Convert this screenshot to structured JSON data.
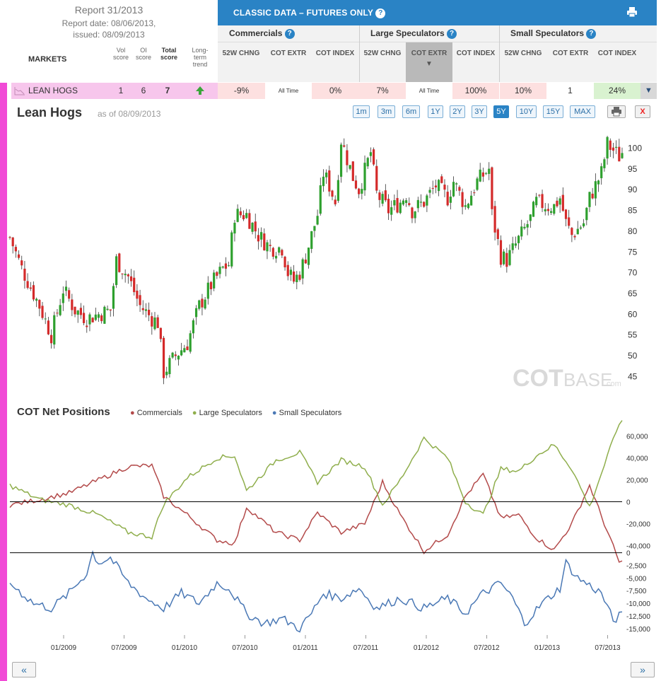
{
  "report": {
    "title": "Report 31/2013",
    "date_line": "Report date: 08/06/2013,",
    "issued_line": "issued: 08/09/2013"
  },
  "columns": {
    "markets": "MARKETS",
    "vol": "Vol score",
    "oi": "OI score",
    "total": "Total score",
    "trend": "Long-term trend"
  },
  "header": {
    "title": "CLASSIC DATA – FUTURES ONLY",
    "groups": [
      "Commercials",
      "Large Speculators",
      "Small Speculators"
    ],
    "sub_52w": "52W CHNG",
    "sub_extr": "COT EXTR",
    "sub_index": "COT INDEX"
  },
  "row": {
    "market": "LEAN HOGS",
    "vol": "1",
    "oi": "6",
    "total": "7",
    "comm_52w": "-9%",
    "comm_extr": "All Time",
    "comm_index": "0%",
    "ls_52w": "7%",
    "ls_extr": "All Time",
    "ls_index": "100%",
    "ss_52w": "10%",
    "ss_extr": "1",
    "ss_index": "24%"
  },
  "chart_header": {
    "title": "Lean Hogs",
    "asof": "as of 08/09/2013",
    "ranges": [
      "1m",
      "3m",
      "6m",
      "1Y",
      "2Y",
      "3Y",
      "5Y",
      "10Y",
      "15Y",
      "MAX"
    ],
    "active_range": "5Y",
    "close_label": "X"
  },
  "watermark": {
    "cot": "COT",
    "base": "BASE",
    "com": ".com"
  },
  "net_positions": {
    "title": "COT Net Positions",
    "legend": [
      {
        "name": "Commercials",
        "color": "#b34a4a"
      },
      {
        "name": "Large Speculators",
        "color": "#8fae4c"
      },
      {
        "name": "Small Speculators",
        "color": "#4a78b5"
      }
    ]
  },
  "nav": {
    "prev": "«",
    "next": "»"
  },
  "colors": {
    "up": "#2ea02e",
    "down": "#d42a2a",
    "accent": "#2a83c5",
    "pink": "#f14ad6"
  },
  "chart_data": [
    {
      "type": "candlestick",
      "title": "Lean Hogs",
      "ylim": [
        42,
        104
      ],
      "yticks": [
        45,
        50,
        55,
        60,
        65,
        70,
        75,
        80,
        85,
        90,
        95,
        100
      ],
      "x_labels": [
        "01/2009",
        "07/2009",
        "01/2010",
        "07/2010",
        "01/2011",
        "07/2011",
        "01/2012",
        "07/2012",
        "01/2013",
        "07/2013"
      ],
      "price_path": [
        [
          0,
          78.5
        ],
        [
          4,
          71
        ],
        [
          10,
          62
        ],
        [
          14,
          55
        ],
        [
          18,
          66
        ],
        [
          22,
          61
        ],
        [
          26,
          59
        ],
        [
          30,
          60
        ],
        [
          34,
          61
        ],
        [
          36,
          73
        ],
        [
          40,
          69
        ],
        [
          44,
          62
        ],
        [
          48,
          59
        ],
        [
          50,
          58
        ],
        [
          52,
          46
        ],
        [
          56,
          50
        ],
        [
          60,
          53
        ],
        [
          64,
          62
        ],
        [
          68,
          67
        ],
        [
          72,
          71
        ],
        [
          74,
          72
        ],
        [
          76,
          84
        ],
        [
          80,
          84
        ],
        [
          84,
          79
        ],
        [
          88,
          76
        ],
        [
          92,
          76
        ],
        [
          94,
          70
        ],
        [
          96,
          68
        ],
        [
          98,
          70
        ],
        [
          100,
          74
        ],
        [
          102,
          79
        ],
        [
          104,
          84
        ],
        [
          106,
          94
        ],
        [
          108,
          91
        ],
        [
          110,
          87
        ],
        [
          112,
          102
        ],
        [
          116,
          93
        ],
        [
          118,
          90
        ],
        [
          122,
          99
        ],
        [
          124,
          89
        ],
        [
          128,
          85
        ],
        [
          132,
          87
        ],
        [
          134,
          89
        ],
        [
          136,
          85
        ],
        [
          140,
          87
        ],
        [
          144,
          91
        ],
        [
          148,
          88
        ],
        [
          150,
          92
        ],
        [
          154,
          86
        ],
        [
          158,
          92
        ],
        [
          162,
          95
        ],
        [
          163,
          84
        ],
        [
          166,
          74
        ],
        [
          168,
          73
        ],
        [
          172,
          78
        ],
        [
          176,
          83
        ],
        [
          178,
          87
        ],
        [
          182,
          86
        ],
        [
          184,
          86
        ],
        [
          186,
          88
        ],
        [
          188,
          82
        ],
        [
          190,
          79
        ],
        [
          194,
          82
        ],
        [
          196,
          88
        ],
        [
          200,
          94
        ],
        [
          202,
          101
        ],
        [
          206,
          98
        ],
        [
          207,
          99
        ]
      ],
      "volatility": 2.2
    },
    {
      "type": "line",
      "title": "COT Net Positions",
      "ylim": [
        -30000,
        72000
      ],
      "yticks": [
        -40000,
        -20000,
        0,
        20000,
        40000,
        60000
      ],
      "series": [
        {
          "name": "Commercials",
          "color": "#b34a4a",
          "path": [
            [
              0,
              -3000
            ],
            [
              10,
              2000
            ],
            [
              20,
              8000
            ],
            [
              30,
              20000
            ],
            [
              40,
              32000
            ],
            [
              48,
              33000
            ],
            [
              52,
              5000
            ],
            [
              60,
              -12000
            ],
            [
              70,
              -35000
            ],
            [
              76,
              -38000
            ],
            [
              80,
              -5000
            ],
            [
              90,
              -28000
            ],
            [
              98,
              -35000
            ],
            [
              104,
              -10000
            ],
            [
              112,
              -28000
            ],
            [
              120,
              -20000
            ],
            [
              126,
              18000
            ],
            [
              132,
              -12000
            ],
            [
              140,
              -45000
            ],
            [
              148,
              -30000
            ],
            [
              154,
              5000
            ],
            [
              160,
              25000
            ],
            [
              166,
              -15000
            ],
            [
              172,
              -12000
            ],
            [
              178,
              -33000
            ],
            [
              184,
              -44000
            ],
            [
              190,
              -20000
            ],
            [
              196,
              15000
            ],
            [
              206,
              -55000
            ]
          ]
        },
        {
          "name": "Large Speculators",
          "color": "#8fae4c",
          "path": [
            [
              0,
              15000
            ],
            [
              10,
              2000
            ],
            [
              20,
              -3000
            ],
            [
              30,
              -12000
            ],
            [
              40,
              -28000
            ],
            [
              48,
              -32000
            ],
            [
              52,
              -2000
            ],
            [
              60,
              22000
            ],
            [
              70,
              40000
            ],
            [
              76,
              42000
            ],
            [
              80,
              10000
            ],
            [
              90,
              38000
            ],
            [
              98,
              45000
            ],
            [
              104,
              18000
            ],
            [
              112,
              38000
            ],
            [
              120,
              32000
            ],
            [
              126,
              -3000
            ],
            [
              132,
              20000
            ],
            [
              140,
              58000
            ],
            [
              148,
              40000
            ],
            [
              154,
              0
            ],
            [
              160,
              -12000
            ],
            [
              166,
              30000
            ],
            [
              172,
              28000
            ],
            [
              178,
              42000
            ],
            [
              184,
              52000
            ],
            [
              190,
              30000
            ],
            [
              196,
              -5000
            ],
            [
              206,
              72000
            ]
          ]
        }
      ]
    },
    {
      "type": "line",
      "title": "COT Net Positions (Small Speculators)",
      "ylim": [
        -16000,
        1200
      ],
      "yticks": [
        -15000,
        -12500,
        -10000,
        -7500,
        -5000,
        -2500,
        0
      ],
      "series": [
        {
          "name": "Small Speculators",
          "color": "#4a78b5",
          "path": [
            [
              0,
              -6000
            ],
            [
              8,
              -10000
            ],
            [
              14,
              -11000
            ],
            [
              20,
              -8000
            ],
            [
              26,
              -4000
            ],
            [
              28,
              0
            ],
            [
              30,
              -2000
            ],
            [
              34,
              -1000
            ],
            [
              40,
              -6000
            ],
            [
              46,
              -9000
            ],
            [
              52,
              -11000
            ],
            [
              58,
              -8000
            ],
            [
              64,
              -10000
            ],
            [
              70,
              -6000
            ],
            [
              74,
              -7000
            ],
            [
              80,
              -12000
            ],
            [
              86,
              -14000
            ],
            [
              92,
              -13000
            ],
            [
              98,
              -15000
            ],
            [
              102,
              -12000
            ],
            [
              106,
              -8000
            ],
            [
              112,
              -9000
            ],
            [
              118,
              -7000
            ],
            [
              124,
              -11000
            ],
            [
              132,
              -9000
            ],
            [
              140,
              -11000
            ],
            [
              148,
              -9000
            ],
            [
              154,
              -12000
            ],
            [
              160,
              -8000
            ],
            [
              166,
              -6000
            ],
            [
              170,
              -9000
            ],
            [
              174,
              -14000
            ],
            [
              180,
              -10000
            ],
            [
              186,
              -7000
            ],
            [
              188,
              -2000
            ],
            [
              192,
              -5000
            ],
            [
              200,
              -8000
            ],
            [
              204,
              -13500
            ],
            [
              206,
              -12500
            ]
          ]
        }
      ]
    }
  ]
}
